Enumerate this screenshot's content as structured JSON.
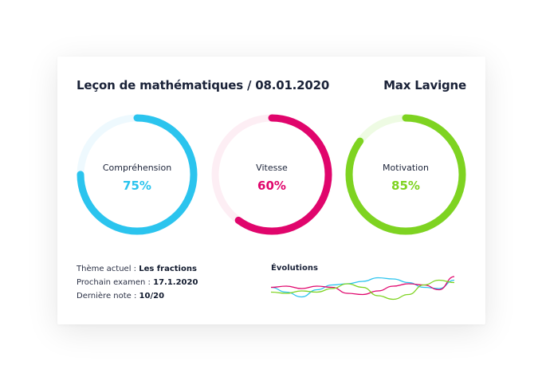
{
  "header": {
    "title": "Leçon de mathématiques / 08.01.2020",
    "student": "Max Lavigne"
  },
  "gauges": [
    {
      "label": "Compréhension",
      "value_text": "75%",
      "value": 0.75,
      "color": "#2bc4ee",
      "track": "#eef9fe"
    },
    {
      "label": "Vitesse",
      "value_text": "60%",
      "value": 0.6,
      "color": "#e0056c",
      "track": "#fdeef4"
    },
    {
      "label": "Motivation",
      "value_text": "85%",
      "value": 0.85,
      "color": "#7ed321",
      "track": "#eefbe3"
    }
  ],
  "info": {
    "theme_label": "Thème actuel : ",
    "theme_value": "Les fractions",
    "exam_label": "Prochain examen : ",
    "exam_value": "17.1.2020",
    "grade_label": "Dernière note : ",
    "grade_value": "10/20"
  },
  "evolutions": {
    "label": "Évolutions",
    "series": [
      {
        "color": "#2bc4ee",
        "values": [
          0.55,
          0.35,
          0.15,
          0.45,
          0.65,
          0.7,
          0.8,
          0.95,
          0.9,
          0.75,
          0.55,
          0.5,
          0.85
        ]
      },
      {
        "color": "#e0056c",
        "values": [
          0.55,
          0.6,
          0.5,
          0.6,
          0.55,
          0.3,
          0.25,
          0.4,
          0.6,
          0.7,
          0.65,
          0.45,
          1.0
        ]
      },
      {
        "color": "#7ed321",
        "values": [
          0.35,
          0.3,
          0.4,
          0.35,
          0.5,
          0.7,
          0.55,
          0.2,
          0.05,
          0.25,
          0.65,
          0.85,
          0.75
        ]
      }
    ]
  }
}
